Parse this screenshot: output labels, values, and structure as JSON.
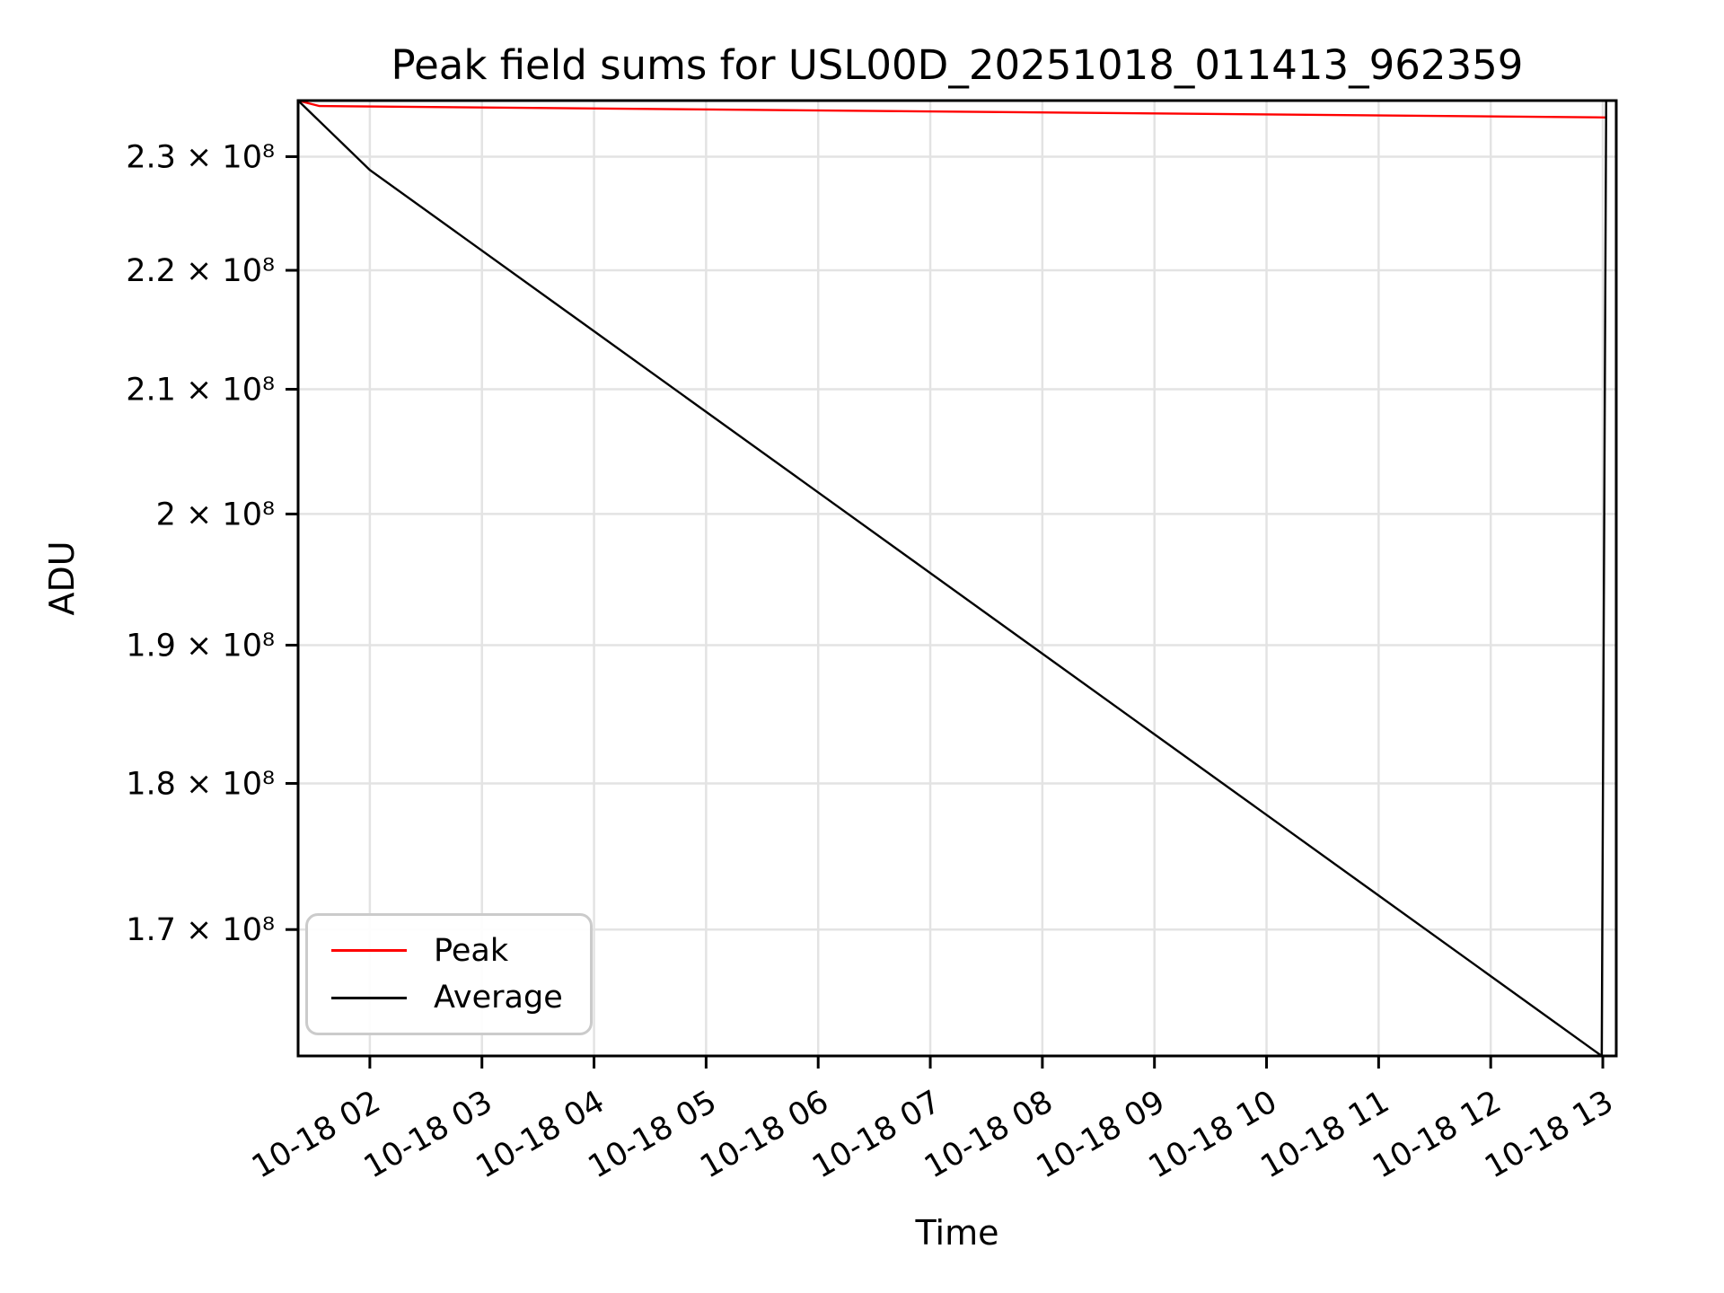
{
  "chart_data": {
    "type": "line",
    "title": "Peak field sums for USL00D_20251018_011413_962359",
    "xlabel": "Time",
    "ylabel": "ADU",
    "yscale": "log",
    "grid": true,
    "legend_position": "lower left",
    "xlim_hours": [
      1.36,
      13.12
    ],
    "ylim": [
      161800000,
      235100000
    ],
    "x_ticks": [
      {
        "hour": 2,
        "label": "10-18 02"
      },
      {
        "hour": 3,
        "label": "10-18 03"
      },
      {
        "hour": 4,
        "label": "10-18 04"
      },
      {
        "hour": 5,
        "label": "10-18 05"
      },
      {
        "hour": 6,
        "label": "10-18 06"
      },
      {
        "hour": 7,
        "label": "10-18 07"
      },
      {
        "hour": 8,
        "label": "10-18 08"
      },
      {
        "hour": 9,
        "label": "10-18 09"
      },
      {
        "hour": 10,
        "label": "10-18 10"
      },
      {
        "hour": 11,
        "label": "10-18 11"
      },
      {
        "hour": 12,
        "label": "10-18 12"
      },
      {
        "hour": 13,
        "label": "10-18 13"
      }
    ],
    "y_ticks": [
      {
        "value": 230000000,
        "label": "2.3 × 10⁸"
      },
      {
        "value": 220000000,
        "label": "2.2 × 10⁸"
      },
      {
        "value": 210000000,
        "label": "2.1 × 10⁸"
      },
      {
        "value": 200000000,
        "label": "2 × 10⁸"
      },
      {
        "value": 190000000,
        "label": "1.9 × 10⁸"
      },
      {
        "value": 180000000,
        "label": "1.8 × 10⁸"
      },
      {
        "value": 170000000,
        "label": "1.7 × 10⁸"
      }
    ],
    "series": [
      {
        "name": "Peak",
        "color": "#ff0000",
        "points_hour_adu": [
          [
            1.36,
            235100000
          ],
          [
            1.55,
            234600000
          ],
          [
            13.02,
            233550000
          ]
        ]
      },
      {
        "name": "Average",
        "color": "#000000",
        "points_hour_adu": [
          [
            1.36,
            235100000
          ],
          [
            2.0,
            228800000
          ],
          [
            12.99,
            161800000
          ],
          [
            13.03,
            235100000
          ]
        ]
      }
    ]
  }
}
